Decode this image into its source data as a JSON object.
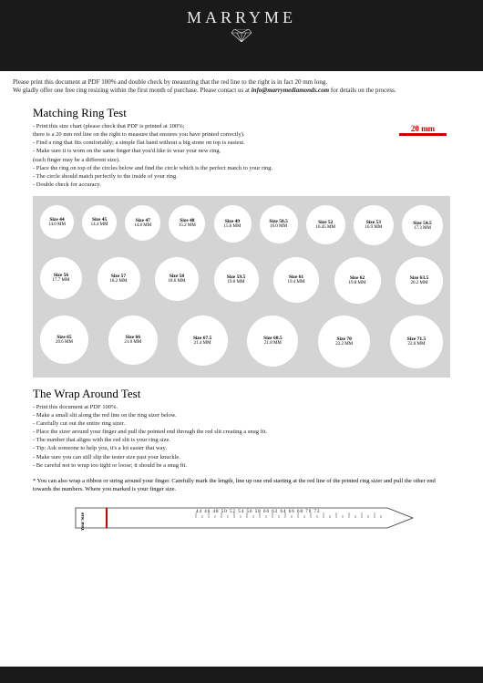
{
  "brand": "MARRYME",
  "intro_line1": "Please print this document at PDF 100% and double check by measuring that the red line to the right is in fact 20 mm long.",
  "intro_line2_a": "We gladly offer one free ring resizing within the first month of purchase. Please contact us at ",
  "intro_email": "info@marrymediamonds.com",
  "intro_line2_b": " for details on the process.",
  "section1_title": "Matching Ring Test",
  "section1_instructions": [
    "- Print this size chart (please check that PDF is printed at 100%;",
    "    there is a 20 mm red line on the right to measure that ensures you have printed correctly).",
    "- Find a ring that fits comfortably; a simple flat band without a big stone on top is easiest.",
    "- Make sure it is worn on the same finger that you'd like to wear your new ring.",
    "    (each finger may be a different size).",
    "- Place the ring on top of the circles below and find the circle which is the perfect match to your ring.",
    "- The circle should match perfectly to the inside of your ring.",
    "- Double check for accuracy."
  ],
  "ruler_label": "20 mm",
  "ruler_color": "#c00",
  "chart_bg": "#d4d4d4",
  "circles": [
    [
      {
        "size": "Size 44",
        "mm": "14.0 MM",
        "d": 37
      },
      {
        "size": "Size 45",
        "mm": "14.4 MM",
        "d": 38
      },
      {
        "size": "Size 47",
        "mm": "14.8 MM",
        "d": 39
      },
      {
        "size": "Size 48",
        "mm": "15.2 MM",
        "d": 40
      },
      {
        "size": "Size 49",
        "mm": "15.6 MM",
        "d": 41
      },
      {
        "size": "Size 50.5",
        "mm": "16.0 MM",
        "d": 42
      },
      {
        "size": "Size 52",
        "mm": "16.45 MM",
        "d": 43
      },
      {
        "size": "Size 53",
        "mm": "16.9 MM",
        "d": 44
      },
      {
        "size": "Size 54.5",
        "mm": "17.3 MM",
        "d": 45
      }
    ],
    [
      {
        "size": "Size 56",
        "mm": "17.7 MM",
        "d": 46
      },
      {
        "size": "Size 57",
        "mm": "18.2 MM",
        "d": 47
      },
      {
        "size": "Size 58",
        "mm": "18.6 MM",
        "d": 48
      },
      {
        "size": "Size 59.5",
        "mm": "19.0 MM",
        "d": 49
      },
      {
        "size": "Size 61",
        "mm": "19.4 MM",
        "d": 50
      },
      {
        "size": "Size 62",
        "mm": "19.8 MM",
        "d": 51
      },
      {
        "size": "Size 63.5",
        "mm": "20.2 MM",
        "d": 52
      }
    ],
    [
      {
        "size": "Size 65",
        "mm": "20.6 MM",
        "d": 53
      },
      {
        "size": "Size 66",
        "mm": "21.0 MM",
        "d": 54
      },
      {
        "size": "Size 67.5",
        "mm": "21.4 MM",
        "d": 55
      },
      {
        "size": "Size 68.5",
        "mm": "21.8 MM",
        "d": 56
      },
      {
        "size": "Size 70",
        "mm": "22.2 MM",
        "d": 57
      },
      {
        "size": "Size 71.5",
        "mm": "22.6 MM",
        "d": 58
      }
    ]
  ],
  "section2_title": "The Wrap Around Test",
  "section2_instructions": [
    "- Print this document at PDF 100%.",
    "- Make a small slit along the red line on the ring sizer below.",
    "- Carefully cut out the entire ring sizer.",
    "- Place the sizer around your finger and pull the pointed end through the red slit creating a snug fit.",
    "- The number that aligns with the red slit is your ring size.",
    "- Tip: Ask someone to help you, it's a lot easier that way.",
    "- Make sure you can still slip the tester size past your knuckle.",
    "- Be careful not to wrap too tight or loose; it should be a snug fit."
  ],
  "note": "* You can also wrap a ribbon or string around your finger. Carefully mark the length, line up one end starting at the red line of the printed ring sizer and pull the other end towards the numbers. Where you marked is your finger size.",
  "sizer_label": "Your Size",
  "sizer_ticks": "44 46 48 50 52 54 56 58 60 62 64 66 68 70 72"
}
